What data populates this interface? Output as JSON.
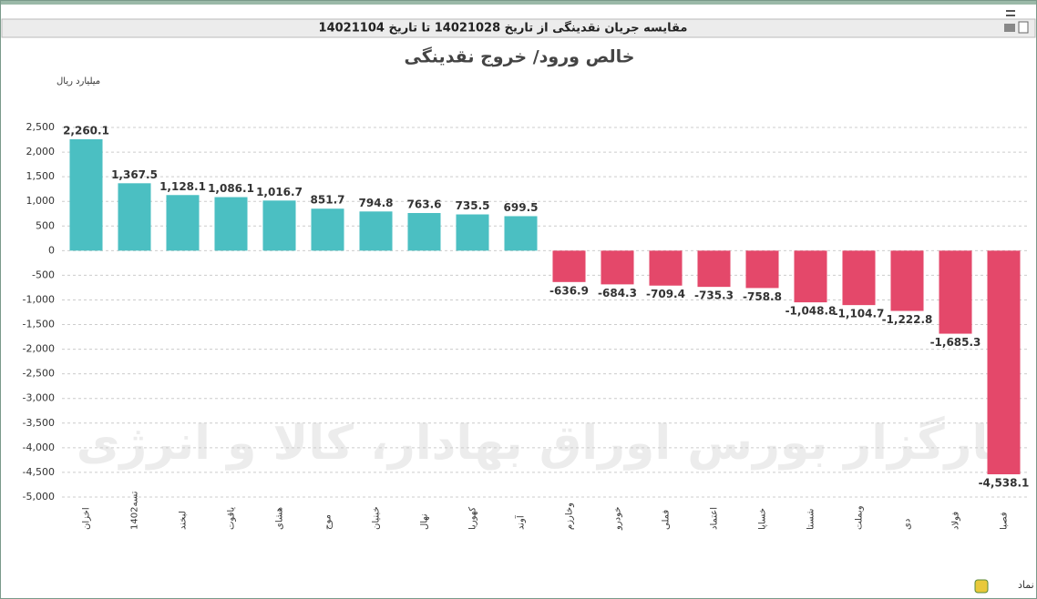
{
  "window_title": "مقایسه جریان نقدینگی از تاریخ 14021028 تا تاریخ 14021104",
  "chart_data": {
    "type": "bar",
    "title": "خالص ورود/ خروج نقدینگی",
    "y_unit": "میلیارد ریال",
    "x_label": "نماد",
    "watermark": "کارگزار بورس اوراق بهادار، کالا و انرژی",
    "categories": [
      "اخزان",
      "تسه1402",
      "لبخند",
      "یاقوت",
      "هشای",
      "موج",
      "خبنیان",
      "نهال",
      "کهوریا",
      "آوند",
      "وخارزم",
      "خودرو",
      "فملی",
      "اعتماد",
      "خساپا",
      "شستا",
      "وبملت",
      "دی",
      "فولاد",
      "فصبا"
    ],
    "values": [
      2260.1,
      1367.5,
      1128.1,
      1086.1,
      1016.7,
      851.7,
      794.8,
      763.6,
      735.5,
      699.5,
      -636.9,
      -684.3,
      -709.4,
      -735.3,
      -758.8,
      -1048.8,
      -1104.7,
      -1222.8,
      -1685.3,
      -4538.1
    ],
    "value_labels": [
      "2,260.1",
      "1,367.5",
      "1,128.1",
      "1,086.1",
      "1,016.7",
      "851.7",
      "794.8",
      "763.6",
      "735.5",
      "699.5",
      "-636.9",
      "-684.3",
      "-709.4",
      "-735.3",
      "-758.8",
      "-1,048.8",
      "-1,104.7",
      "-1,222.8",
      "-1,685.3",
      "-4,538.1"
    ],
    "positive_color": "#4bbfc2",
    "negative_color": "#e4486a",
    "ylim": [
      -5000,
      2500
    ],
    "yticks": [
      {
        "value": 2500,
        "label": "2,500"
      },
      {
        "value": 2000,
        "label": "2,000"
      },
      {
        "value": 1500,
        "label": "1,500"
      },
      {
        "value": 1000,
        "label": "1,000"
      },
      500,
      0,
      -500,
      {
        "value": -1000,
        "label": "-1,000"
      },
      {
        "value": -1500,
        "label": "-1,500"
      },
      {
        "value": -2000,
        "label": "-2,000"
      },
      {
        "value": -2500,
        "label": "-2,500"
      },
      {
        "value": -3000,
        "label": "-3,000"
      },
      {
        "value": -3500,
        "label": "-3,500"
      },
      {
        "value": -4000,
        "label": "-4,000"
      },
      {
        "value": -4500,
        "label": "-4,500"
      },
      {
        "value": -5000,
        "label": "-5,000"
      }
    ],
    "grid": true
  }
}
